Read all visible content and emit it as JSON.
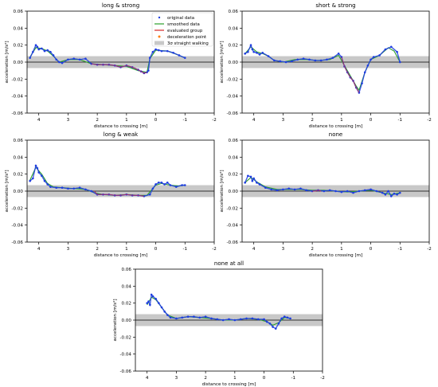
{
  "figure": {
    "colors": {
      "original": "#1f3de0",
      "smoothed": "#2ca02c",
      "evaluated": "#d62728",
      "deceleration": "#ff7f0e",
      "band": "#c8c8c8",
      "zero_line": "#000000"
    }
  },
  "legend": {
    "placement": "top-right of first panel",
    "entries": [
      {
        "label": "original data",
        "marker": "point",
        "color": "#1f3de0"
      },
      {
        "label": "smoothed data",
        "marker": "line",
        "color": "#2ca02c"
      },
      {
        "label": "evaluated group",
        "marker": "line",
        "color": "#d62728"
      },
      {
        "label": "deceleration point",
        "marker": "dot",
        "color": "#ff7f0e"
      },
      {
        "label": "3σ straight walking",
        "marker": "box",
        "color": "#c8c8c8"
      }
    ]
  },
  "chart_data": [
    {
      "type": "scatter",
      "title": "long & strong",
      "xlabel": "distance to crossing [m]",
      "ylabel": "acceleration [m/s²]",
      "xlim": [
        4.4,
        -2
      ],
      "ylim": [
        -0.06,
        0.06
      ],
      "xticks": [
        4,
        3,
        2,
        1,
        0,
        -1,
        -2
      ],
      "yticks": [
        -0.06,
        -0.04,
        -0.02,
        0.0,
        0.02,
        0.04,
        0.06
      ],
      "band": [
        -0.007,
        0.007
      ],
      "series": [
        {
          "role": "original",
          "x": [
            4.3,
            4.2,
            4.1,
            4.05,
            4.0,
            3.9,
            3.8,
            3.7,
            3.6,
            3.5,
            3.4,
            3.3,
            3.2,
            3.0,
            2.8,
            2.6,
            2.4,
            2.2,
            2.0,
            1.8,
            1.6,
            1.4,
            1.2,
            1.0,
            0.8,
            0.6,
            0.5,
            0.4,
            0.3,
            0.25,
            0.2,
            0.1,
            0.0,
            -0.1,
            -0.2,
            -0.4,
            -0.6,
            -0.8,
            -1.0
          ],
          "y": [
            0.005,
            0.012,
            0.02,
            0.018,
            0.015,
            0.016,
            0.013,
            0.014,
            0.012,
            0.008,
            0.003,
            0.0,
            -0.001,
            0.003,
            0.004,
            0.003,
            0.004,
            -0.002,
            -0.003,
            -0.003,
            -0.003,
            -0.004,
            -0.006,
            -0.004,
            -0.006,
            -0.009,
            -0.011,
            -0.013,
            -0.012,
            -0.01,
            0.005,
            0.012,
            0.015,
            0.014,
            0.013,
            0.013,
            0.011,
            0.008,
            0.005
          ]
        },
        {
          "role": "smoothed",
          "x": [
            4.3,
            4.1,
            3.9,
            3.7,
            3.5,
            3.3,
            3.0,
            2.6,
            2.2,
            1.8,
            1.4,
            1.0,
            0.6,
            0.3,
            0.2,
            0.0,
            -0.4,
            -0.8,
            -1.0
          ],
          "y": [
            0.006,
            0.017,
            0.016,
            0.013,
            0.007,
            0.0,
            0.003,
            0.003,
            -0.002,
            -0.003,
            -0.004,
            -0.005,
            -0.01,
            -0.012,
            0.004,
            0.014,
            0.013,
            0.008,
            0.005
          ]
        },
        {
          "role": "evaluated",
          "x": [
            2.2,
            2.0,
            1.8,
            1.6,
            1.4,
            1.2,
            1.0,
            0.8,
            0.6,
            0.4,
            0.3
          ],
          "y": [
            -0.002,
            -0.003,
            -0.003,
            -0.003,
            -0.004,
            -0.006,
            -0.004,
            -0.006,
            -0.009,
            -0.013,
            -0.012
          ]
        }
      ]
    },
    {
      "type": "scatter",
      "title": "short & strong",
      "xlabel": "distance to crossing [m]",
      "ylabel": "acceleration [m/s²]",
      "xlim": [
        4.4,
        -2
      ],
      "ylim": [
        -0.06,
        0.06
      ],
      "xticks": [
        4,
        3,
        2,
        1,
        0,
        -1,
        -2
      ],
      "yticks": [
        -0.06,
        -0.04,
        -0.02,
        0.0,
        0.02,
        0.04,
        0.06
      ],
      "band": [
        -0.007,
        0.007
      ],
      "series": [
        {
          "role": "original",
          "x": [
            4.3,
            4.2,
            4.1,
            4.05,
            4.0,
            3.9,
            3.8,
            3.7,
            3.5,
            3.3,
            3.1,
            2.9,
            2.7,
            2.5,
            2.3,
            2.1,
            1.9,
            1.7,
            1.5,
            1.3,
            1.1,
            1.0,
            0.9,
            0.8,
            0.7,
            0.6,
            0.5,
            0.4,
            0.3,
            0.2,
            0.1,
            0.0,
            -0.1,
            -0.3,
            -0.5,
            -0.7,
            -0.9,
            -1.0
          ],
          "y": [
            0.01,
            0.012,
            0.02,
            0.015,
            0.012,
            0.011,
            0.009,
            0.011,
            0.007,
            0.002,
            0.001,
            0.0,
            0.001,
            0.003,
            0.004,
            0.003,
            0.002,
            0.002,
            0.003,
            0.005,
            0.01,
            0.006,
            -0.005,
            -0.012,
            -0.018,
            -0.022,
            -0.03,
            -0.036,
            -0.025,
            -0.012,
            -0.004,
            0.003,
            0.006,
            0.008,
            0.015,
            0.018,
            0.012,
            0.0
          ]
        },
        {
          "role": "smoothed",
          "x": [
            4.3,
            4.1,
            3.9,
            3.7,
            3.5,
            3.3,
            3.0,
            2.6,
            2.2,
            1.8,
            1.4,
            1.1,
            0.9,
            0.7,
            0.5,
            0.4,
            0.2,
            0.0,
            -0.3,
            -0.6,
            -0.8,
            -1.0
          ],
          "y": [
            0.01,
            0.018,
            0.012,
            0.01,
            0.007,
            0.002,
            0.0,
            0.003,
            0.003,
            0.002,
            0.003,
            0.008,
            -0.004,
            -0.016,
            -0.028,
            -0.033,
            -0.012,
            0.003,
            0.008,
            0.017,
            0.013,
            0.0
          ]
        },
        {
          "role": "evaluated",
          "x": [
            1.0,
            0.9,
            0.8,
            0.7,
            0.6,
            0.5,
            0.4
          ],
          "y": [
            0.006,
            -0.005,
            -0.012,
            -0.018,
            -0.022,
            -0.03,
            -0.036
          ]
        }
      ]
    },
    {
      "type": "scatter",
      "title": "long & weak",
      "xlabel": "distance to crossing [m]",
      "ylabel": "acceleration [m/s²]",
      "xlim": [
        4.4,
        -2
      ],
      "ylim": [
        -0.06,
        0.06
      ],
      "xticks": [
        4,
        3,
        2,
        1,
        0,
        -1,
        -2
      ],
      "yticks": [
        -0.06,
        -0.04,
        -0.02,
        0.0,
        0.02,
        0.04,
        0.06
      ],
      "band": [
        -0.007,
        0.007
      ],
      "series": [
        {
          "role": "original",
          "x": [
            4.3,
            4.2,
            4.1,
            4.05,
            4.0,
            3.9,
            3.8,
            3.7,
            3.6,
            3.4,
            3.2,
            3.0,
            2.8,
            2.6,
            2.4,
            2.2,
            2.0,
            1.8,
            1.6,
            1.4,
            1.2,
            1.0,
            0.8,
            0.6,
            0.4,
            0.2,
            0.1,
            0.0,
            -0.1,
            -0.2,
            -0.3,
            -0.4,
            -0.5,
            -0.7,
            -0.9,
            -1.0
          ],
          "y": [
            0.012,
            0.015,
            0.03,
            0.027,
            0.022,
            0.018,
            0.012,
            0.008,
            0.005,
            0.004,
            0.004,
            0.003,
            0.003,
            0.004,
            0.002,
            0.0,
            -0.004,
            -0.004,
            -0.004,
            -0.005,
            -0.005,
            -0.004,
            -0.005,
            -0.005,
            -0.006,
            -0.004,
            0.003,
            0.008,
            0.01,
            0.01,
            0.008,
            0.01,
            0.007,
            0.005,
            0.007,
            0.007
          ]
        },
        {
          "role": "smoothed",
          "x": [
            4.3,
            4.1,
            3.9,
            3.7,
            3.5,
            3.2,
            2.8,
            2.4,
            2.1,
            1.8,
            1.4,
            1.0,
            0.6,
            0.3,
            0.0,
            -0.2,
            -0.5,
            -0.8,
            -1.0
          ],
          "y": [
            0.013,
            0.028,
            0.02,
            0.009,
            0.005,
            0.004,
            0.003,
            0.002,
            -0.002,
            -0.004,
            -0.005,
            -0.004,
            -0.005,
            -0.005,
            0.007,
            0.009,
            0.007,
            0.006,
            0.007
          ]
        },
        {
          "role": "evaluated",
          "x": [
            2.1,
            2.0,
            1.8,
            1.6,
            1.4,
            1.2,
            1.0,
            0.8,
            0.6,
            0.4
          ],
          "y": [
            0.0,
            -0.004,
            -0.004,
            -0.004,
            -0.005,
            -0.005,
            -0.004,
            -0.005,
            -0.005,
            -0.006
          ]
        }
      ]
    },
    {
      "type": "scatter",
      "title": "none",
      "xlabel": "distance to crossing [m]",
      "ylabel": "acceleration [m/s²]",
      "xlim": [
        4.4,
        -2
      ],
      "ylim": [
        -0.06,
        0.06
      ],
      "xticks": [
        4,
        3,
        2,
        1,
        0,
        -1,
        -2
      ],
      "yticks": [
        -0.06,
        -0.04,
        -0.02,
        0.0,
        0.02,
        0.04,
        0.06
      ],
      "band": [
        -0.007,
        0.007
      ],
      "series": [
        {
          "role": "original",
          "x": [
            4.3,
            4.2,
            4.1,
            4.05,
            4.0,
            3.9,
            3.8,
            3.6,
            3.4,
            3.2,
            3.0,
            2.8,
            2.6,
            2.4,
            2.2,
            2.0,
            1.8,
            1.6,
            1.4,
            1.2,
            1.0,
            0.8,
            0.6,
            0.4,
            0.2,
            0.0,
            -0.2,
            -0.4,
            -0.5,
            -0.6,
            -0.7,
            -0.8,
            -0.9,
            -1.0
          ],
          "y": [
            0.01,
            0.018,
            0.017,
            0.012,
            0.015,
            0.01,
            0.008,
            0.004,
            0.002,
            0.001,
            0.002,
            0.003,
            0.002,
            0.003,
            0.001,
            0.0,
            0.001,
            0.0,
            0.001,
            0.0,
            -0.001,
            0.0,
            -0.002,
            0.0,
            0.001,
            0.002,
            0.0,
            -0.002,
            -0.004,
            0.0,
            -0.006,
            -0.003,
            -0.004,
            -0.002
          ]
        },
        {
          "role": "smoothed",
          "x": [
            4.3,
            4.1,
            3.9,
            3.6,
            3.2,
            2.8,
            2.4,
            2.0,
            1.6,
            1.2,
            0.8,
            0.4,
            0.0,
            -0.4,
            -0.7,
            -1.0
          ],
          "y": [
            0.01,
            0.016,
            0.011,
            0.005,
            0.002,
            0.002,
            0.002,
            0.001,
            0.001,
            0.0,
            -0.001,
            0.0,
            0.001,
            -0.002,
            -0.004,
            -0.002
          ]
        },
        {
          "role": "evaluated",
          "x": [
            2.0,
            1.9,
            1.8,
            1.7
          ],
          "y": [
            0.0,
            0.0,
            0.001,
            0.0
          ]
        }
      ]
    },
    {
      "type": "scatter",
      "title": "none at all",
      "xlabel": "distance to crossing [m]",
      "ylabel": "acceleration [m/s²]",
      "xlim": [
        4.4,
        -2
      ],
      "ylim": [
        -0.06,
        0.06
      ],
      "xticks": [
        4,
        3,
        2,
        1,
        0,
        -1,
        -2
      ],
      "yticks": [
        -0.06,
        -0.04,
        -0.02,
        0.0,
        0.02,
        0.04,
        0.06
      ],
      "band": [
        -0.007,
        0.007
      ],
      "series": [
        {
          "role": "original",
          "x": [
            4.0,
            3.95,
            3.9,
            3.85,
            3.8,
            3.7,
            3.6,
            3.5,
            3.4,
            3.3,
            3.2,
            3.0,
            2.8,
            2.6,
            2.4,
            2.2,
            2.0,
            1.8,
            1.6,
            1.4,
            1.2,
            1.0,
            0.8,
            0.6,
            0.4,
            0.2,
            0.0,
            -0.1,
            -0.2,
            -0.3,
            -0.4,
            -0.5,
            -0.6,
            -0.7,
            -0.8,
            -0.9
          ],
          "y": [
            0.02,
            0.022,
            0.018,
            0.03,
            0.028,
            0.025,
            0.02,
            0.015,
            0.01,
            0.006,
            0.003,
            0.002,
            0.003,
            0.004,
            0.004,
            0.003,
            0.004,
            0.002,
            0.001,
            0.0,
            0.001,
            0.0,
            0.001,
            0.002,
            0.002,
            0.001,
            0.001,
            -0.002,
            -0.004,
            -0.008,
            -0.01,
            -0.004,
            0.002,
            0.004,
            0.003,
            0.002
          ]
        },
        {
          "role": "smoothed",
          "x": [
            4.0,
            3.85,
            3.7,
            3.5,
            3.3,
            3.0,
            2.6,
            2.2,
            1.8,
            1.4,
            1.0,
            0.6,
            0.2,
            -0.1,
            -0.3,
            -0.5,
            -0.7,
            -0.9
          ],
          "y": [
            0.018,
            0.027,
            0.024,
            0.015,
            0.006,
            0.002,
            0.004,
            0.003,
            0.002,
            0.0,
            0.0,
            0.002,
            0.001,
            -0.002,
            -0.006,
            -0.003,
            0.003,
            0.002
          ]
        }
      ]
    }
  ]
}
